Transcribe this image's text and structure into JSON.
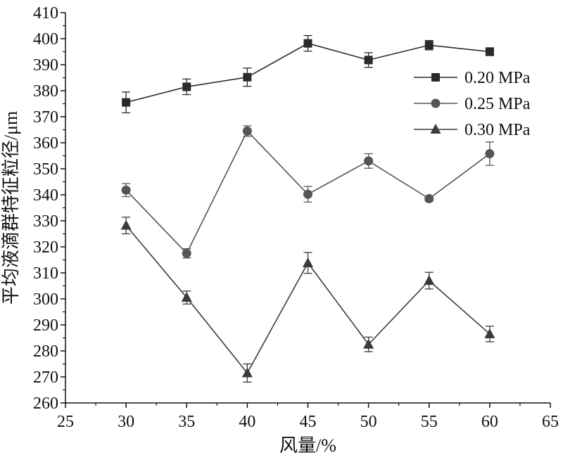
{
  "chart_data": {
    "type": "line",
    "xlabel": "风量/%",
    "ylabel": "平均液滴群特征粒径/μm",
    "xlim": [
      25,
      65
    ],
    "ylim": [
      260,
      410
    ],
    "xticks": [
      25,
      30,
      35,
      40,
      45,
      50,
      55,
      60,
      65
    ],
    "yticks": [
      260,
      270,
      280,
      290,
      300,
      310,
      320,
      330,
      340,
      350,
      360,
      370,
      380,
      390,
      400,
      410
    ],
    "x": [
      30,
      35,
      40,
      45,
      50,
      55,
      60
    ],
    "legend_position": "top-right",
    "grid": false,
    "series": [
      {
        "name": "0.20 MPa",
        "marker": "square",
        "color": "#2a2a2a",
        "values": [
          375.5,
          381.5,
          385.2,
          398.2,
          391.8,
          397.5,
          395.0
        ],
        "errors": [
          4.0,
          3.0,
          3.5,
          3.0,
          2.8,
          1.8,
          1.5
        ]
      },
      {
        "name": "0.25 MPa",
        "marker": "circle",
        "color": "#555555",
        "values": [
          341.8,
          317.5,
          364.5,
          340.2,
          353.0,
          338.5,
          355.8
        ],
        "errors": [
          2.5,
          1.8,
          2.0,
          3.0,
          2.8,
          1.0,
          4.5
        ]
      },
      {
        "name": "0.30 MPa",
        "marker": "triangle",
        "color": "#3a3a3a",
        "values": [
          328.2,
          300.5,
          271.5,
          313.8,
          282.5,
          307.0,
          286.5
        ],
        "errors": [
          3.2,
          2.5,
          3.5,
          4.0,
          2.8,
          3.2,
          3.0
        ]
      }
    ]
  }
}
